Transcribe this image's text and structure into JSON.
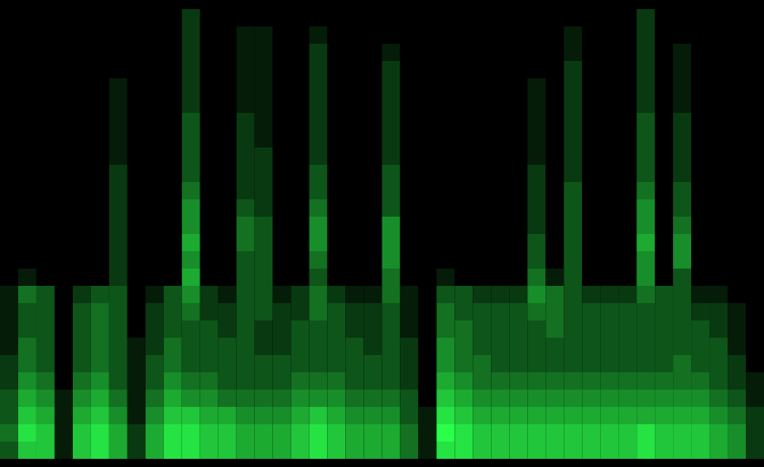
{
  "chart_data": {
    "type": "heatmap",
    "tick_labels": false,
    "color": "#2aff4a",
    "cells": [
      [
        0,
        0,
        0,
        0,
        0,
        0,
        0,
        0,
        0,
        0,
        2,
        0,
        0,
        0,
        0,
        0,
        0,
        0,
        0,
        0,
        0,
        0,
        0,
        0,
        0,
        0,
        0,
        0,
        0,
        0,
        0,
        0,
        0,
        0,
        0,
        2,
        0,
        0,
        0,
        0,
        0,
        0
      ],
      [
        0,
        0,
        0,
        0,
        0,
        0,
        0,
        0,
        0,
        0,
        2,
        0,
        0,
        1,
        1,
        0,
        0,
        1,
        0,
        0,
        0,
        0,
        0,
        0,
        0,
        0,
        0,
        0,
        0,
        0,
        0,
        1,
        0,
        0,
        0,
        2,
        0,
        0,
        0,
        0,
        0,
        0
      ],
      [
        0,
        0,
        0,
        0,
        0,
        0,
        0,
        0,
        0,
        0,
        2,
        0,
        0,
        1,
        1,
        0,
        0,
        2,
        0,
        0,
        0,
        1,
        0,
        0,
        0,
        0,
        0,
        0,
        0,
        0,
        0,
        1,
        0,
        0,
        0,
        2,
        0,
        1,
        0,
        0,
        0,
        0
      ],
      [
        0,
        0,
        0,
        0,
        0,
        0,
        0,
        0,
        0,
        0,
        2,
        0,
        0,
        1,
        1,
        0,
        0,
        2,
        0,
        0,
        0,
        2,
        0,
        0,
        0,
        0,
        0,
        0,
        0,
        0,
        0,
        2,
        0,
        0,
        0,
        2,
        0,
        1,
        0,
        0,
        0,
        0
      ],
      [
        0,
        0,
        0,
        0,
        0,
        0,
        1,
        0,
        0,
        0,
        2,
        0,
        0,
        1,
        1,
        0,
        0,
        2,
        0,
        0,
        0,
        2,
        0,
        0,
        0,
        0,
        0,
        0,
        0,
        1,
        0,
        2,
        0,
        0,
        0,
        2,
        0,
        1,
        0,
        0,
        0,
        0
      ],
      [
        0,
        0,
        0,
        0,
        0,
        0,
        1,
        0,
        0,
        0,
        2,
        0,
        0,
        1,
        1,
        0,
        0,
        2,
        0,
        0,
        0,
        2,
        0,
        0,
        0,
        0,
        0,
        0,
        0,
        1,
        0,
        2,
        0,
        0,
        0,
        2,
        0,
        1,
        0,
        0,
        0,
        0
      ],
      [
        0,
        0,
        0,
        0,
        0,
        0,
        1,
        0,
        0,
        0,
        3,
        0,
        0,
        2,
        1,
        0,
        0,
        2,
        0,
        0,
        0,
        2,
        0,
        0,
        0,
        0,
        0,
        0,
        0,
        1,
        0,
        2,
        0,
        0,
        0,
        3,
        0,
        2,
        0,
        0,
        0,
        0
      ],
      [
        0,
        0,
        0,
        0,
        0,
        0,
        1,
        0,
        0,
        0,
        3,
        0,
        0,
        2,
        1,
        0,
        0,
        2,
        0,
        0,
        0,
        2,
        0,
        0,
        0,
        0,
        0,
        0,
        0,
        1,
        0,
        2,
        0,
        0,
        0,
        3,
        0,
        2,
        0,
        0,
        0,
        0
      ],
      [
        0,
        0,
        0,
        0,
        0,
        0,
        1,
        0,
        0,
        0,
        3,
        0,
        0,
        2,
        2,
        0,
        0,
        2,
        0,
        0,
        0,
        2,
        0,
        0,
        0,
        0,
        0,
        0,
        0,
        1,
        0,
        2,
        0,
        0,
        0,
        3,
        0,
        2,
        0,
        0,
        0,
        0
      ],
      [
        0,
        0,
        0,
        0,
        0,
        0,
        2,
        0,
        0,
        0,
        3,
        0,
        0,
        2,
        2,
        0,
        0,
        3,
        0,
        0,
        0,
        3,
        0,
        0,
        0,
        0,
        0,
        0,
        0,
        2,
        0,
        2,
        0,
        0,
        0,
        3,
        0,
        2,
        0,
        0,
        0,
        0
      ],
      [
        0,
        0,
        0,
        0,
        0,
        0,
        2,
        0,
        0,
        0,
        4,
        0,
        0,
        2,
        2,
        0,
        0,
        3,
        0,
        0,
        0,
        3,
        0,
        0,
        0,
        0,
        0,
        0,
        0,
        2,
        0,
        3,
        0,
        0,
        0,
        4,
        0,
        3,
        0,
        0,
        0,
        0
      ],
      [
        0,
        0,
        0,
        0,
        0,
        0,
        2,
        0,
        0,
        0,
        5,
        0,
        0,
        3,
        2,
        0,
        0,
        4,
        0,
        0,
        0,
        3,
        0,
        0,
        0,
        0,
        0,
        0,
        0,
        2,
        0,
        3,
        0,
        0,
        0,
        5,
        0,
        3,
        0,
        0,
        0,
        0
      ],
      [
        0,
        0,
        0,
        0,
        0,
        0,
        2,
        0,
        0,
        0,
        5,
        0,
        0,
        4,
        3,
        0,
        0,
        5,
        0,
        0,
        0,
        5,
        0,
        0,
        0,
        0,
        0,
        0,
        0,
        2,
        0,
        3,
        0,
        0,
        0,
        5,
        0,
        4,
        0,
        0,
        0,
        0
      ],
      [
        0,
        0,
        0,
        0,
        0,
        0,
        2,
        0,
        0,
        0,
        6,
        0,
        0,
        4,
        3,
        0,
        0,
        5,
        0,
        0,
        0,
        5,
        0,
        0,
        0,
        0,
        0,
        0,
        0,
        3,
        0,
        3,
        0,
        0,
        0,
        6,
        0,
        5,
        0,
        0,
        0,
        0
      ],
      [
        0,
        0,
        0,
        0,
        0,
        0,
        2,
        0,
        0,
        0,
        5,
        0,
        0,
        3,
        3,
        0,
        0,
        4,
        0,
        0,
        0,
        5,
        0,
        0,
        0,
        0,
        0,
        0,
        0,
        3,
        0,
        3,
        0,
        0,
        0,
        5,
        0,
        5,
        0,
        0,
        0,
        0
      ],
      [
        0,
        1,
        0,
        0,
        0,
        0,
        2,
        0,
        0,
        0,
        6,
        0,
        0,
        3,
        3,
        0,
        0,
        3,
        0,
        0,
        0,
        4,
        0,
        0,
        1,
        0,
        0,
        0,
        0,
        4,
        1,
        3,
        0,
        0,
        0,
        5,
        0,
        3,
        0,
        0,
        0,
        0
      ],
      [
        1,
        4,
        3,
        0,
        2,
        3,
        3,
        0,
        1,
        3,
        5,
        2,
        1,
        3,
        3,
        1,
        2,
        4,
        2,
        1,
        1,
        4,
        1,
        0,
        3,
        3,
        2,
        2,
        2,
        5,
        4,
        3,
        2,
        2,
        2,
        4,
        3,
        3,
        1,
        1,
        0,
        0
      ],
      [
        1,
        3,
        3,
        0,
        3,
        4,
        3,
        0,
        2,
        3,
        4,
        2,
        2,
        3,
        3,
        2,
        2,
        4,
        3,
        2,
        2,
        3,
        1,
        0,
        4,
        3,
        3,
        3,
        3,
        4,
        4,
        3,
        3,
        3,
        3,
        3,
        3,
        3,
        2,
        2,
        1,
        0
      ],
      [
        1,
        3,
        3,
        0,
        3,
        4,
        3,
        0,
        2,
        3,
        3,
        3,
        2,
        3,
        2,
        2,
        3,
        3,
        3,
        2,
        2,
        3,
        1,
        0,
        4,
        4,
        3,
        3,
        3,
        3,
        4,
        3,
        3,
        3,
        3,
        3,
        3,
        3,
        3,
        2,
        1,
        0
      ],
      [
        1,
        4,
        3,
        0,
        3,
        4,
        3,
        1,
        2,
        4,
        3,
        3,
        3,
        3,
        2,
        2,
        3,
        3,
        3,
        3,
        2,
        3,
        2,
        0,
        5,
        4,
        3,
        3,
        3,
        3,
        3,
        3,
        3,
        3,
        3,
        3,
        3,
        3,
        3,
        3,
        1,
        0
      ],
      [
        2,
        4,
        3,
        0,
        3,
        4,
        3,
        1,
        3,
        4,
        3,
        3,
        3,
        3,
        3,
        3,
        3,
        3,
        3,
        3,
        3,
        3,
        2,
        0,
        5,
        4,
        4,
        3,
        3,
        3,
        3,
        3,
        3,
        3,
        3,
        3,
        3,
        4,
        3,
        3,
        2,
        0
      ],
      [
        2,
        5,
        4,
        0,
        4,
        5,
        3,
        1,
        3,
        5,
        4,
        4,
        3,
        3,
        3,
        3,
        4,
        4,
        4,
        3,
        3,
        3,
        2,
        0,
        6,
        5,
        4,
        4,
        4,
        4,
        4,
        4,
        4,
        4,
        4,
        4,
        4,
        4,
        4,
        3,
        2,
        1
      ],
      [
        3,
        6,
        5,
        1,
        5,
        6,
        4,
        1,
        4,
        6,
        5,
        5,
        4,
        4,
        4,
        4,
        5,
        5,
        5,
        4,
        4,
        4,
        3,
        0,
        7,
        6,
        5,
        5,
        5,
        5,
        5,
        5,
        5,
        5,
        5,
        5,
        5,
        5,
        5,
        4,
        3,
        1
      ],
      [
        3,
        7,
        6,
        1,
        6,
        7,
        5,
        1,
        5,
        7,
        7,
        6,
        6,
        5,
        5,
        5,
        6,
        7,
        6,
        5,
        5,
        5,
        3,
        1,
        8,
        7,
        6,
        6,
        6,
        6,
        6,
        6,
        6,
        6,
        6,
        6,
        6,
        6,
        6,
        5,
        4,
        2
      ],
      [
        4,
        8,
        7,
        1,
        7,
        8,
        6,
        2,
        6,
        8,
        8,
        7,
        7,
        6,
        6,
        6,
        7,
        8,
        7,
        6,
        6,
        6,
        4,
        1,
        9,
        8,
        7,
        7,
        7,
        7,
        7,
        7,
        7,
        7,
        7,
        8,
        7,
        7,
        7,
        6,
        5,
        2
      ],
      [
        3,
        7,
        7,
        1,
        7,
        8,
        6,
        2,
        6,
        8,
        8,
        7,
        7,
        6,
        6,
        6,
        7,
        8,
        7,
        6,
        6,
        6,
        4,
        1,
        8,
        8,
        7,
        7,
        7,
        7,
        7,
        7,
        7,
        7,
        7,
        8,
        7,
        7,
        7,
        6,
        5,
        2
      ]
    ]
  }
}
